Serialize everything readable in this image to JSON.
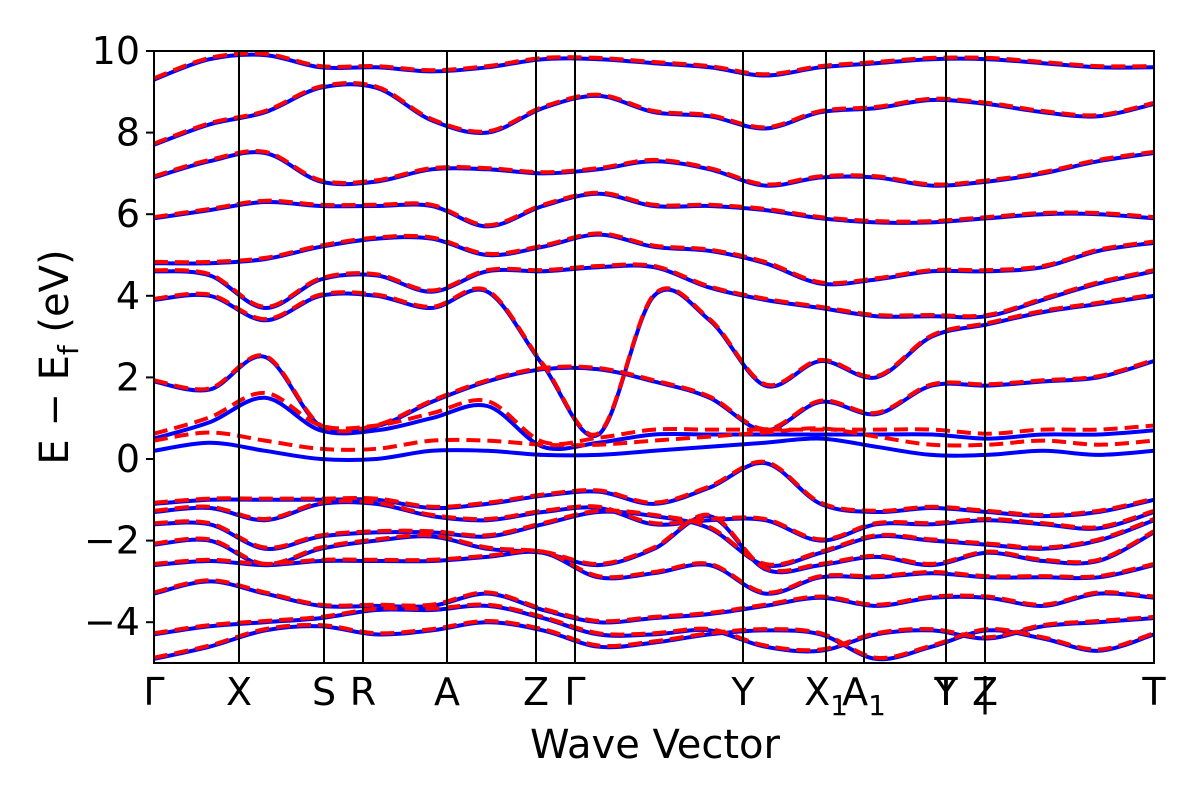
{
  "chart_data": {
    "type": "line",
    "title": "",
    "xlabel": "Wave Vector",
    "ylabel": "E − E",
    "ylabel_sub": "f",
    "ylabel_unit": " (eV)",
    "ylim": [
      -5,
      10
    ],
    "yticks": [
      {
        "value": 10,
        "label": "10"
      },
      {
        "value": 8,
        "label": "8"
      },
      {
        "value": 6,
        "label": "6"
      },
      {
        "value": 4,
        "label": "4"
      },
      {
        "value": 2,
        "label": "2"
      },
      {
        "value": 0,
        "label": "0"
      },
      {
        "value": -2,
        "label": "−2"
      },
      {
        "value": -4,
        "label": "−4"
      }
    ],
    "xlim": [
      0,
      100
    ],
    "kpoints": [
      {
        "x": 0.0,
        "label": "Γ"
      },
      {
        "x": 8.5,
        "label": "X"
      },
      {
        "x": 17.0,
        "label": "S"
      },
      {
        "x": 20.9,
        "label": "R"
      },
      {
        "x": 29.3,
        "label": "A"
      },
      {
        "x": 38.2,
        "label": "Z"
      },
      {
        "x": 42.1,
        "label": "Γ"
      },
      {
        "x": 58.9,
        "label": "Y"
      },
      {
        "x": 67.2,
        "label": "X",
        "sub": "1"
      },
      {
        "x": 71.0,
        "label": "A",
        "sub": "1"
      },
      {
        "x": 79.2,
        "label": "T"
      },
      {
        "x": 79.2,
        "label": "Y"
      },
      {
        "x": 83.1,
        "label": "|"
      },
      {
        "x": 83.1,
        "label": "Z"
      },
      {
        "x": 100.0,
        "label": "T"
      }
    ],
    "series": [
      {
        "style": "solid",
        "color": "#0000ff"
      },
      {
        "style": "dashed",
        "color": "#ff0000"
      }
    ],
    "bands": [
      [
        -4.9,
        -4.6,
        -4.2,
        -4.1,
        -4.3,
        -4.2,
        -4.0,
        -4.2,
        -4.6,
        -4.5,
        -4.3,
        -4.2,
        -4.3,
        -4.9,
        -4.6,
        -4.2,
        -4.4,
        -4.7,
        -4.3
      ],
      [
        -4.3,
        -4.1,
        -4.0,
        -3.9,
        -3.7,
        -3.7,
        -3.6,
        -3.9,
        -4.3,
        -4.3,
        -4.2,
        -4.6,
        -4.7,
        -4.3,
        -4.2,
        -4.4,
        -4.1,
        -4.0,
        -3.9
      ],
      [
        -3.3,
        -3.0,
        -3.3,
        -3.6,
        -3.6,
        -3.6,
        -3.3,
        -3.7,
        -4.0,
        -3.9,
        -3.8,
        -3.6,
        -3.4,
        -3.6,
        -3.4,
        -3.4,
        -3.6,
        -3.3,
        -3.4
      ],
      [
        -2.6,
        -2.5,
        -2.6,
        -2.5,
        -2.5,
        -2.5,
        -2.4,
        -2.3,
        -2.9,
        -2.8,
        -2.6,
        -3.3,
        -2.9,
        -2.9,
        -2.8,
        -2.9,
        -2.9,
        -2.9,
        -2.6
      ],
      [
        -2.1,
        -2.0,
        -2.6,
        -2.2,
        -2.0,
        -1.9,
        -2.2,
        -2.3,
        -2.6,
        -2.2,
        -1.4,
        -2.7,
        -2.6,
        -2.4,
        -2.6,
        -2.3,
        -2.5,
        -2.5,
        -1.8
      ],
      [
        -1.6,
        -1.6,
        -2.2,
        -1.9,
        -1.8,
        -1.8,
        -1.9,
        -1.6,
        -1.3,
        -1.4,
        -1.7,
        -2.6,
        -2.3,
        -1.9,
        -2.0,
        -2.1,
        -2.2,
        -2.0,
        -1.5
      ],
      [
        -1.3,
        -1.2,
        -1.5,
        -1.1,
        -1.1,
        -1.4,
        -1.5,
        -1.3,
        -1.2,
        -1.6,
        -1.5,
        -1.5,
        -2.0,
        -1.6,
        -1.6,
        -1.5,
        -1.6,
        -1.7,
        -1.3
      ],
      [
        -1.1,
        -1.0,
        -1.0,
        -1.0,
        -1.0,
        -1.2,
        -1.1,
        -0.9,
        -0.8,
        -1.1,
        -0.7,
        -0.1,
        -1.1,
        -1.3,
        -1.2,
        -1.3,
        -1.4,
        -1.3,
        -1.0
      ],
      [
        0.2,
        0.4,
        0.2,
        0.0,
        0.0,
        0.2,
        0.2,
        0.1,
        0.1,
        0.2,
        0.3,
        0.4,
        0.5,
        0.3,
        0.1,
        0.1,
        0.2,
        0.1,
        0.2
      ],
      [
        0.5,
        0.9,
        1.5,
        0.7,
        0.7,
        1.0,
        1.3,
        0.3,
        0.4,
        0.6,
        0.6,
        0.6,
        0.6,
        0.6,
        0.6,
        0.5,
        0.6,
        0.6,
        0.7
      ],
      [
        1.9,
        1.7,
        2.5,
        0.8,
        0.8,
        1.4,
        1.9,
        2.2,
        2.2,
        1.9,
        1.5,
        0.7,
        1.4,
        1.1,
        1.8,
        1.8,
        1.9,
        2.0,
        2.4
      ],
      [
        3.9,
        4.0,
        3.4,
        4.0,
        4.0,
        3.7,
        4.1,
        2.3,
        0.6,
        4.0,
        3.4,
        1.8,
        2.4,
        2.0,
        3.0,
        3.3,
        3.6,
        3.8,
        4.0
      ],
      [
        4.6,
        4.5,
        3.7,
        4.4,
        4.5,
        4.1,
        4.6,
        4.6,
        4.7,
        4.7,
        4.2,
        3.9,
        3.7,
        3.5,
        3.5,
        3.5,
        3.9,
        4.3,
        4.6
      ],
      [
        4.8,
        4.8,
        4.9,
        5.2,
        5.4,
        5.4,
        5.0,
        5.2,
        5.5,
        5.2,
        5.1,
        4.8,
        4.3,
        4.4,
        4.6,
        4.6,
        4.7,
        5.1,
        5.3
      ],
      [
        5.9,
        6.1,
        6.3,
        6.2,
        6.2,
        6.2,
        5.7,
        6.2,
        6.5,
        6.2,
        6.2,
        6.1,
        5.9,
        5.8,
        5.8,
        5.9,
        6.0,
        6.0,
        5.9
      ],
      [
        6.9,
        7.3,
        7.5,
        6.8,
        6.8,
        7.1,
        7.1,
        7.0,
        7.1,
        7.3,
        7.1,
        6.7,
        6.9,
        6.9,
        6.7,
        6.8,
        7.0,
        7.3,
        7.5
      ],
      [
        7.7,
        8.2,
        8.5,
        9.1,
        9.1,
        8.3,
        8.0,
        8.6,
        8.9,
        8.5,
        8.4,
        8.1,
        8.5,
        8.6,
        8.8,
        8.7,
        8.5,
        8.4,
        8.7
      ],
      [
        9.3,
        9.8,
        9.9,
        9.6,
        9.6,
        9.5,
        9.6,
        9.8,
        9.8,
        9.7,
        9.6,
        9.4,
        9.6,
        9.7,
        9.8,
        9.8,
        9.7,
        9.6,
        9.6
      ]
    ]
  }
}
